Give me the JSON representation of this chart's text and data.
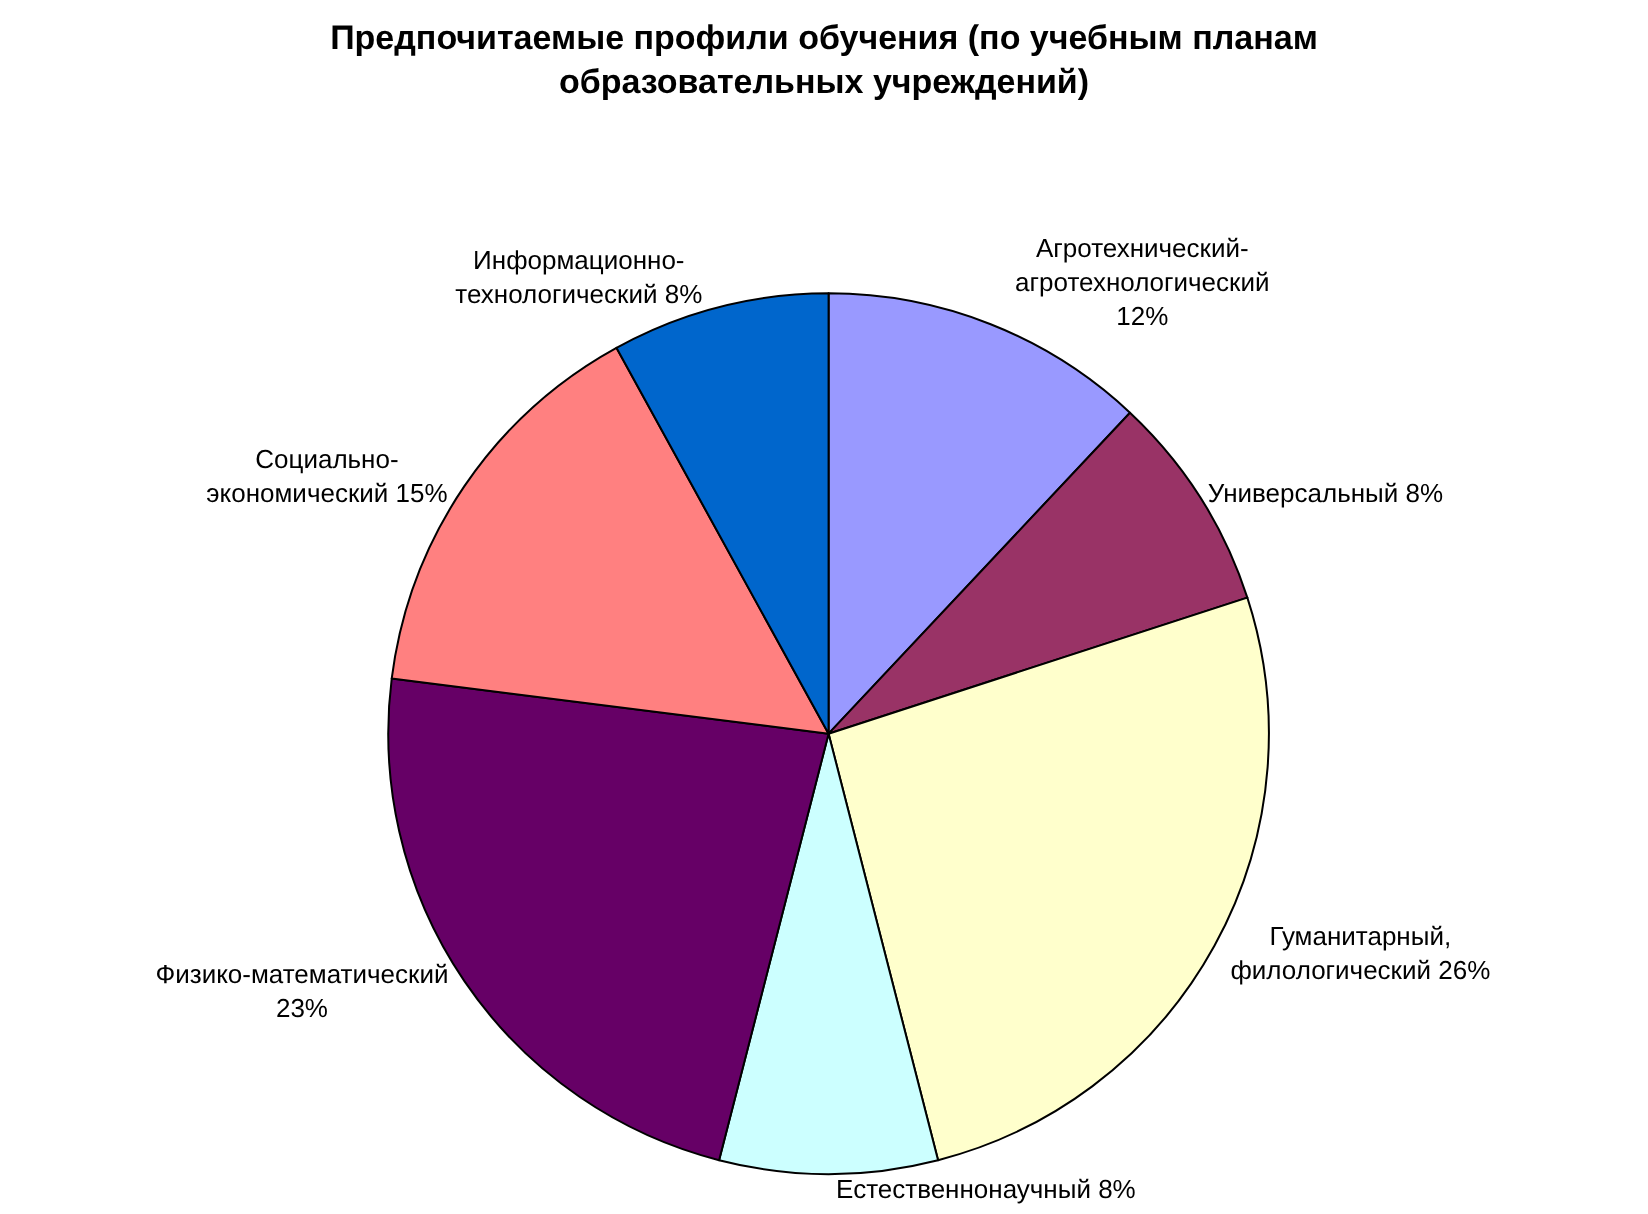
{
  "chart_data": {
    "type": "pie",
    "title": "Предпочитаемые профили обучения (по учебным планам образовательных учреждений)",
    "categories": [
      "Агротехнический-агротехнологический",
      "Универсальный",
      "Гуманитарный, филологический",
      "Естественнонаучный",
      "Физико-математический",
      "Социально-экономический",
      "Информационно-технологический"
    ],
    "values": [
      12,
      8,
      26,
      8,
      23,
      15,
      8
    ],
    "value_labels": [
      "12%",
      "8%",
      "26%",
      "8%",
      "23%",
      "15%",
      "8%"
    ],
    "colors": [
      "#9999ff",
      "#993366",
      "#ffffcc",
      "#ccffff",
      "#660066",
      "#ff8080",
      "#0066cc"
    ],
    "legend": false
  }
}
